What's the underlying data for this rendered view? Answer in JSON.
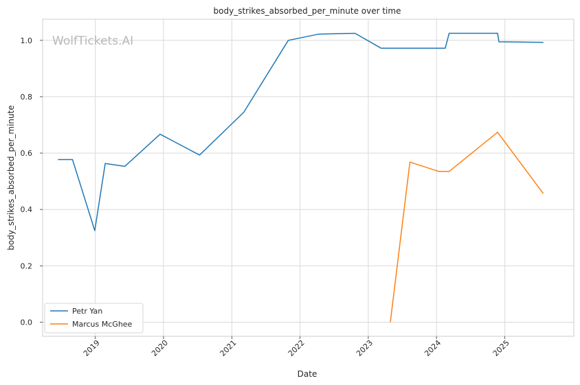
{
  "chart_data": {
    "type": "line",
    "title": "body_strikes_absorbed_per_minute over time",
    "xlabel": "Date",
    "ylabel": "body_strikes_absorbed_per_minute",
    "watermark": "WolfTickets.AI",
    "x_ticks": [
      "2019",
      "2020",
      "2021",
      "2022",
      "2023",
      "2024",
      "2025"
    ],
    "y_ticks": [
      "0.0",
      "0.2",
      "0.4",
      "0.6",
      "0.8",
      "1.0"
    ],
    "xlim": [
      "2018-03-25",
      "2026-01-05"
    ],
    "ylim": [
      -0.05,
      1.075
    ],
    "grid": true,
    "legend_position": "lower-left",
    "series": [
      {
        "name": "Petr Yan",
        "color": "#1f77b4",
        "points": [
          [
            "2018-06-15",
            0.577
          ],
          [
            "2018-09-01",
            0.577
          ],
          [
            "2018-12-29",
            0.325
          ],
          [
            "2019-02-23",
            0.563
          ],
          [
            "2019-06-08",
            0.553
          ],
          [
            "2019-12-14",
            0.667
          ],
          [
            "2020-07-12",
            0.593
          ],
          [
            "2021-03-06",
            0.745
          ],
          [
            "2021-10-30",
            1.0
          ],
          [
            "2022-04-09",
            1.022
          ],
          [
            "2022-10-22",
            1.025
          ],
          [
            "2023-03-11",
            0.972
          ],
          [
            "2024-02-17",
            0.972
          ],
          [
            "2024-03-09",
            1.025
          ],
          [
            "2024-11-23",
            1.025
          ],
          [
            "2024-11-30",
            0.995
          ],
          [
            "2025-07-26",
            0.993
          ]
        ]
      },
      {
        "name": "Marcus McGhee",
        "color": "#ff7f0e",
        "points": [
          [
            "2023-04-29",
            0.0
          ],
          [
            "2023-08-12",
            0.568
          ],
          [
            "2024-01-13",
            0.535
          ],
          [
            "2024-03-09",
            0.535
          ],
          [
            "2024-11-23",
            0.674
          ],
          [
            "2025-07-26",
            0.456
          ]
        ]
      }
    ]
  }
}
